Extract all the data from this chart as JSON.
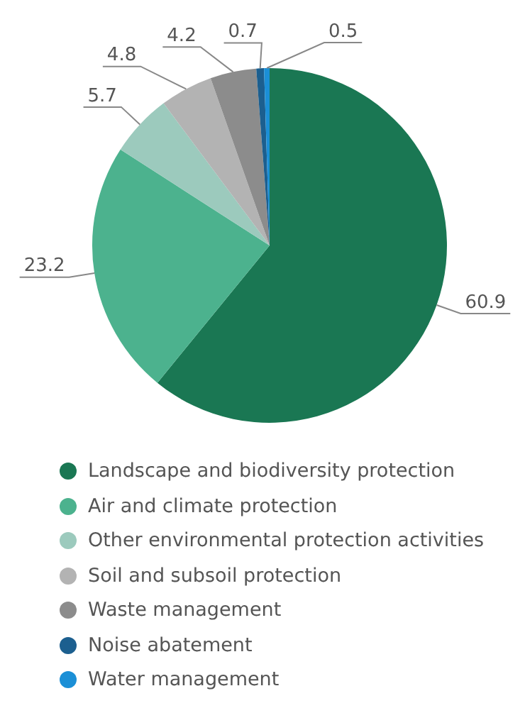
{
  "chart_data": {
    "type": "pie",
    "categories": [
      "Landscape and biodiversity protection",
      "Air and climate protection",
      "Other environmental protection activities",
      "Soil and subsoil protection",
      "Waste management",
      "Noise abatement",
      "Water management"
    ],
    "values": [
      60.9,
      23.2,
      5.7,
      4.8,
      4.2,
      0.7,
      0.5
    ],
    "colors": [
      "#1a7753",
      "#4cb28e",
      "#9ccabd",
      "#b3b3b3",
      "#8c8c8c",
      "#1c5f8f",
      "#1b8fd6"
    ],
    "data_labels": true,
    "legend": "bottom"
  }
}
